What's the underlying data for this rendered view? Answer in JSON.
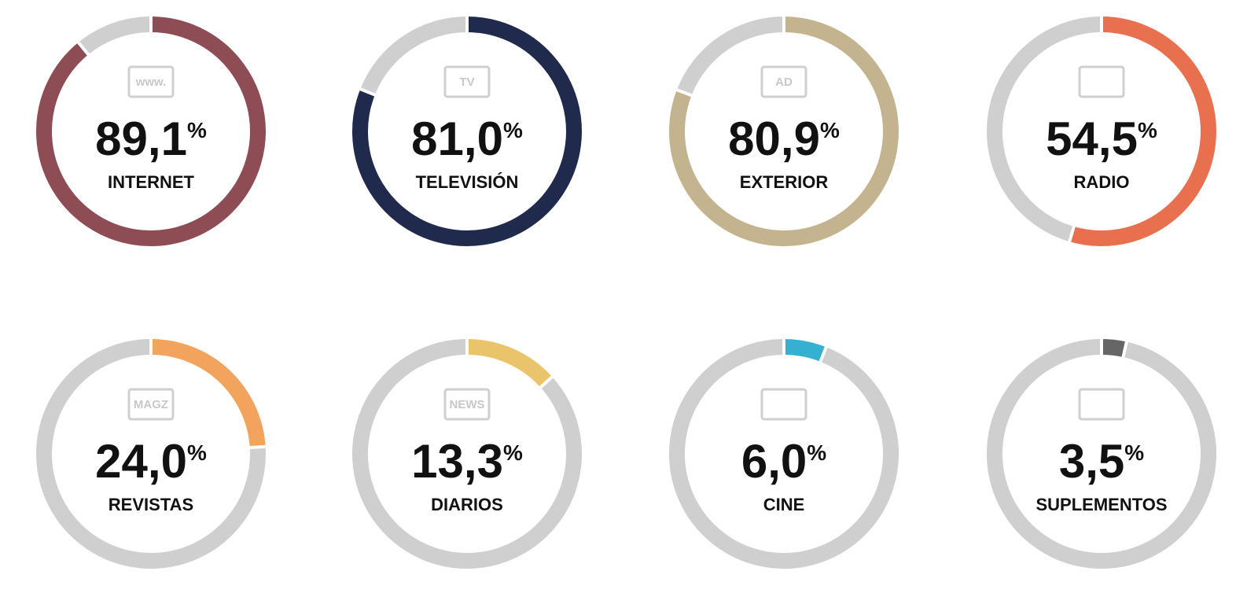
{
  "chart_data": [
    {
      "type": "donut",
      "title": "INTERNET",
      "values": [
        89.1
      ],
      "value_labels": [
        "89,1"
      ],
      "unit": "%",
      "color": "#8e4d55",
      "icon_label": "www."
    },
    {
      "type": "donut",
      "title": "TELEVISIÓN",
      "values": [
        81.0
      ],
      "value_labels": [
        "81,0"
      ],
      "unit": "%",
      "color": "#1f2a4c",
      "icon_label": "TV"
    },
    {
      "type": "donut",
      "title": "EXTERIOR",
      "values": [
        80.9
      ],
      "value_labels": [
        "80,9"
      ],
      "unit": "%",
      "color": "#c3b48f",
      "icon_label": "AD"
    },
    {
      "type": "donut",
      "title": "RADIO",
      "values": [
        54.5
      ],
      "value_labels": [
        "54,5"
      ],
      "unit": "%",
      "color": "#e8704f"
    },
    {
      "type": "donut",
      "title": "REVISTAS",
      "values": [
        24.0
      ],
      "value_labels": [
        "24,0"
      ],
      "unit": "%",
      "color": "#f2a45f",
      "icon_label": "MAGZ"
    },
    {
      "type": "donut",
      "title": "DIARIOS",
      "values": [
        13.3
      ],
      "value_labels": [
        "13,3"
      ],
      "unit": "%",
      "color": "#e9c46a",
      "icon_label": "NEWS"
    },
    {
      "type": "donut",
      "title": "CINE",
      "values": [
        6.0
      ],
      "value_labels": [
        "6,0"
      ],
      "unit": "%",
      "color": "#35b0d1"
    },
    {
      "type": "donut",
      "title": "SUPLEMENTOS",
      "values": [
        3.5
      ],
      "value_labels": [
        "3,5"
      ],
      "unit": "%",
      "color": "#666666"
    }
  ]
}
